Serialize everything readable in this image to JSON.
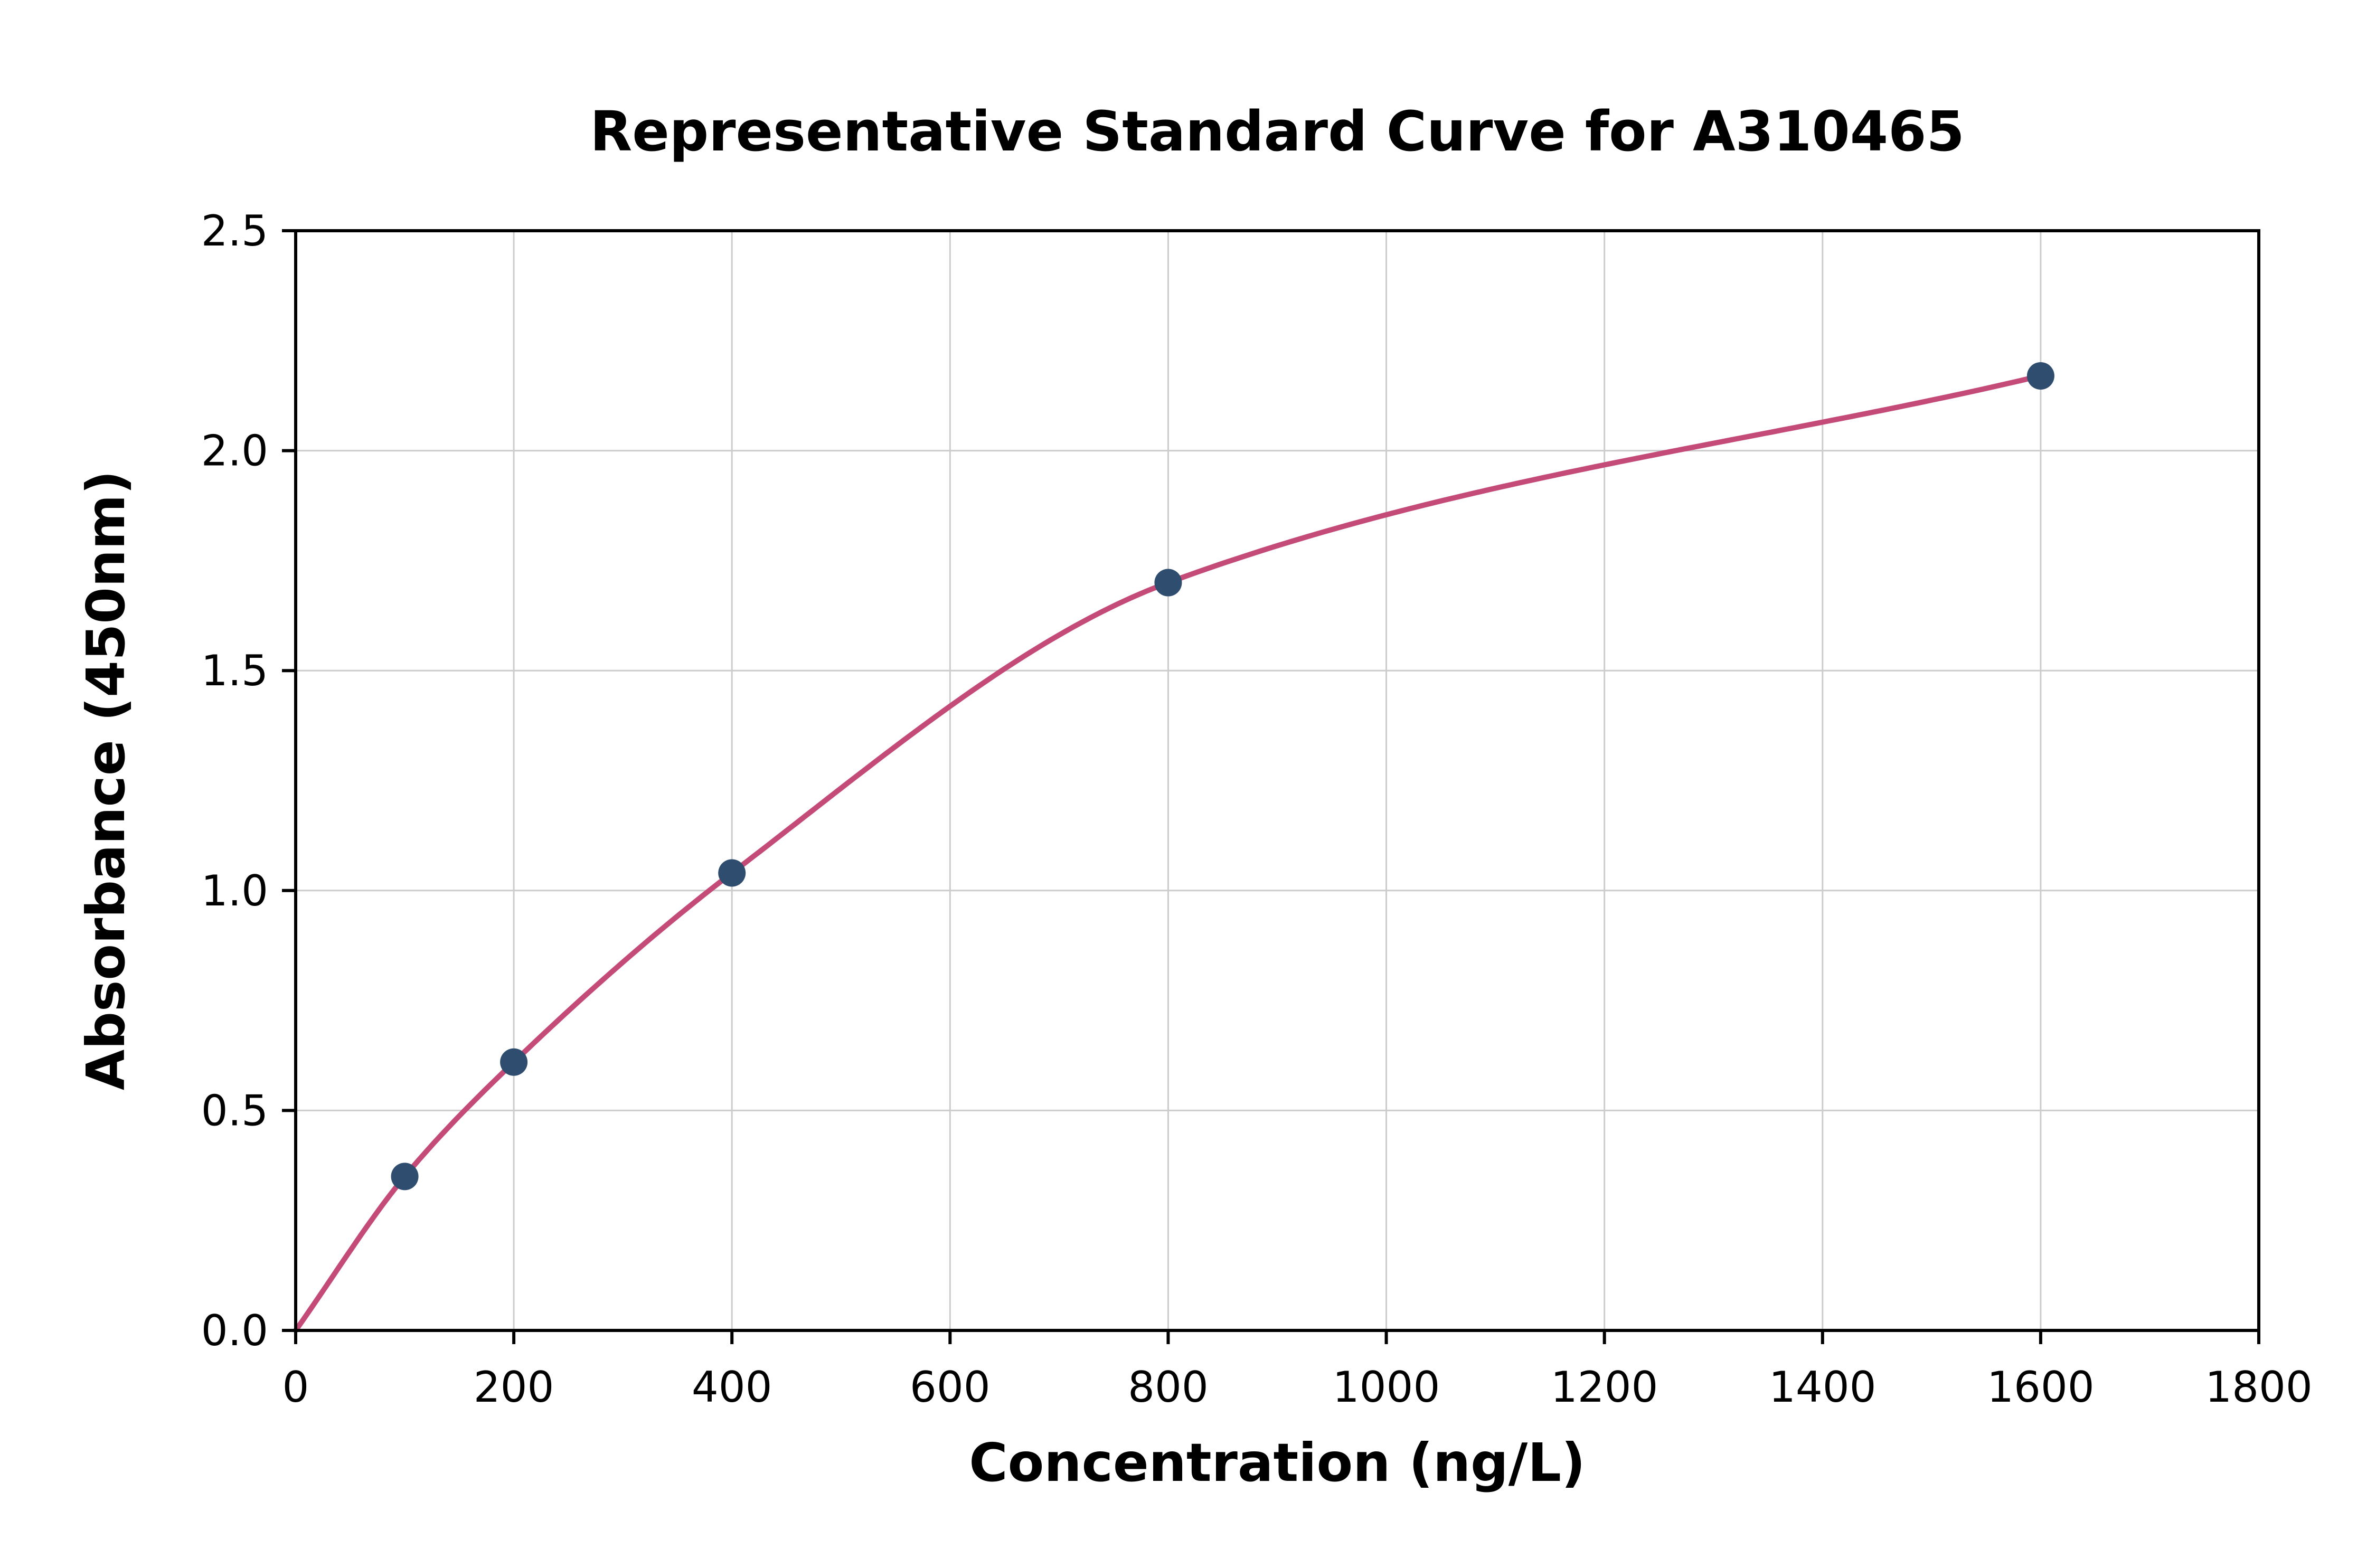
{
  "chart_data": {
    "type": "scatter",
    "title": "Representative Standard Curve for A310465",
    "xlabel": "Concentration (ng/L)",
    "ylabel": "Absorbance (450nm)",
    "xlim": [
      0,
      1800
    ],
    "ylim": [
      0,
      2.5
    ],
    "xticks": [
      0,
      200,
      400,
      600,
      800,
      1000,
      1200,
      1400,
      1600,
      1800
    ],
    "xtick_labels": [
      "0",
      "200",
      "400",
      "600",
      "800",
      "1000",
      "1200",
      "1400",
      "1600",
      "1800"
    ],
    "yticks": [
      0,
      0.5,
      1.0,
      1.5,
      2.0,
      2.5
    ],
    "ytick_labels": [
      "0.0",
      "0.5",
      "1.0",
      "1.5",
      "2.0",
      "2.5"
    ],
    "grid": true,
    "legend": "none",
    "points": {
      "x": [
        100,
        200,
        400,
        800,
        1600
      ],
      "y": [
        0.35,
        0.61,
        1.04,
        1.7,
        2.17
      ]
    },
    "fit_curve": {
      "description": "smooth saturation curve through origin and all standard points",
      "x": [
        0,
        100,
        200,
        400,
        800,
        1600
      ],
      "y": [
        0,
        0.35,
        0.61,
        1.04,
        1.7,
        2.17
      ]
    },
    "colors": {
      "curve": "#c44b77",
      "points": "#2f4d6e",
      "grid": "#cccccc",
      "axis": "#000000",
      "text": "#000000",
      "background": "#ffffff"
    }
  }
}
